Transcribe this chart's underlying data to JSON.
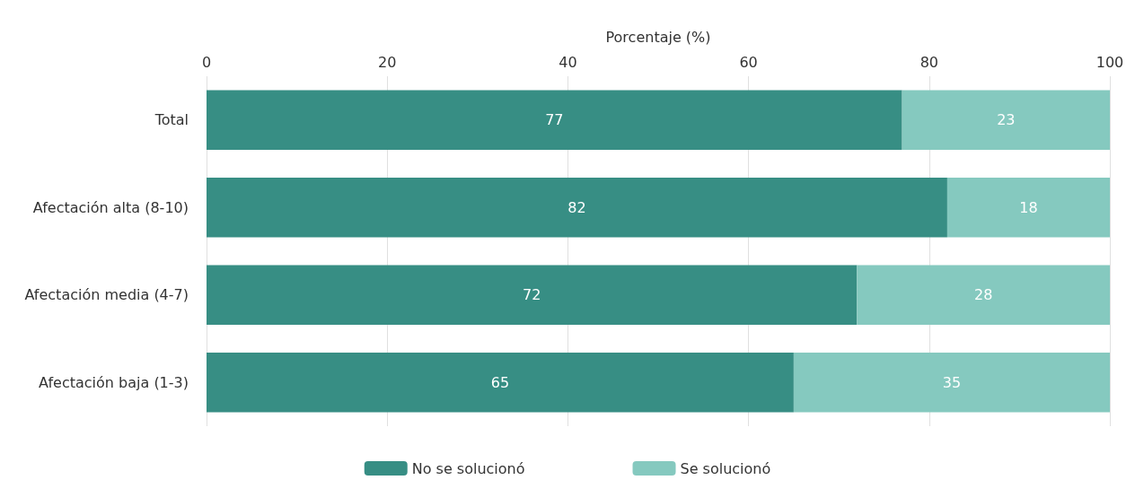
{
  "chart_data": {
    "type": "bar",
    "orientation": "horizontal",
    "stacked": true,
    "xlabel": "Porcentaje (%)",
    "categories": [
      "Total",
      "Afectación alta (8-10)",
      "Afectación media (4-7)",
      "Afectación baja (1-3)"
    ],
    "series": [
      {
        "name": "No se solucionó",
        "color": "#378e84",
        "values": [
          77,
          82,
          72,
          65
        ]
      },
      {
        "name": "Se solucionó",
        "color": "#85c9bf",
        "values": [
          23,
          18,
          28,
          35
        ]
      }
    ],
    "xlim": [
      0,
      100
    ],
    "xticks": [
      0,
      20,
      40,
      60,
      80,
      100
    ],
    "grid": "x",
    "legend": "bottom",
    "data_labels": true
  }
}
